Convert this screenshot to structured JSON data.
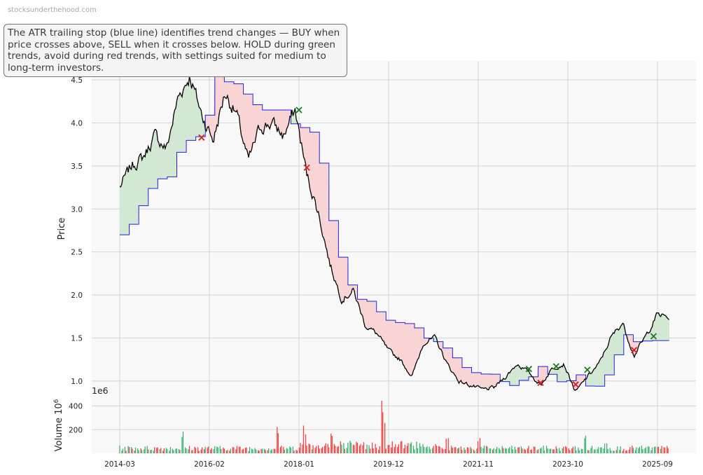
{
  "watermark": "stocksunderthehood.com",
  "annotation": "The ATR trailing stop (blue line) identifies trend changes — BUY when price crosses above, SELL when it crosses below. HOLD during green trends, avoid during red trends, with settings suited for medium to long-term investors.",
  "colors": {
    "price": "#000000",
    "stop": "#1f1fe0",
    "fill_up": "#d3e8d3",
    "fill_down": "#f9d4d4",
    "buy": "#1a7a1a",
    "sell": "#d62020",
    "vol_up": "#3cb371",
    "vol_down": "#ef4444",
    "plot_bg": "#f8f8f8",
    "grid": "#d4d4d4"
  },
  "chart_data": [
    {
      "type": "line",
      "ylabel": "Price",
      "ylim": [
        0.82,
        4.72
      ],
      "yticks": [
        "1.0",
        "1.5",
        "2.0",
        "2.5",
        "3.0",
        "3.5",
        "4.0",
        "4.5"
      ],
      "xticks": [
        "2014-03",
        "2016-02",
        "2018-01",
        "2019-12",
        "2021-11",
        "2023-10",
        "2025-09"
      ],
      "grid": true,
      "series": [
        {
          "role": "price",
          "x": [
            "2014-03",
            "2014-06",
            "2014-09",
            "2014-12",
            "2015-03",
            "2015-06",
            "2015-09",
            "2015-12",
            "2016-03",
            "2016-06",
            "2016-09",
            "2016-12",
            "2017-03",
            "2017-06",
            "2017-09",
            "2017-12",
            "2018-03",
            "2018-06",
            "2018-09",
            "2018-12",
            "2019-03",
            "2019-06",
            "2019-09",
            "2019-12",
            "2020-03",
            "2020-06",
            "2020-09",
            "2020-12",
            "2021-03",
            "2021-06",
            "2021-09",
            "2021-12",
            "2022-03",
            "2022-06",
            "2022-09",
            "2022-12",
            "2023-03",
            "2023-06",
            "2023-09",
            "2023-12",
            "2024-03",
            "2024-06",
            "2024-09",
            "2024-12",
            "2025-03",
            "2025-06",
            "2025-09",
            "2025-12"
          ],
          "values": [
            3.25,
            3.5,
            3.6,
            3.85,
            3.7,
            4.3,
            4.55,
            4.1,
            3.8,
            4.35,
            4.1,
            3.55,
            3.95,
            4.0,
            3.85,
            4.15,
            3.4,
            2.95,
            2.35,
            1.95,
            2.05,
            1.65,
            1.55,
            1.35,
            1.25,
            1.05,
            1.45,
            1.5,
            1.2,
            1.0,
            0.95,
            0.9,
            0.92,
            1.05,
            1.2,
            1.1,
            0.95,
            1.15,
            1.2,
            0.87,
            1.05,
            1.2,
            1.5,
            1.68,
            1.3,
            1.52,
            1.78,
            1.73
          ]
        },
        {
          "role": "atr_stop",
          "x": [
            "2014-03",
            "2014-06",
            "2014-09",
            "2014-12",
            "2015-03",
            "2015-06",
            "2015-09",
            "2015-12",
            "2016-03",
            "2016-06",
            "2016-09",
            "2016-12",
            "2017-03",
            "2017-06",
            "2017-09",
            "2017-12",
            "2018-03",
            "2018-06",
            "2018-09",
            "2018-12",
            "2019-03",
            "2019-06",
            "2019-09",
            "2019-12",
            "2020-03",
            "2020-06",
            "2020-09",
            "2020-12",
            "2021-03",
            "2021-06",
            "2021-09",
            "2021-12",
            "2022-03",
            "2022-06",
            "2022-09",
            "2022-12",
            "2023-03",
            "2023-06",
            "2023-09",
            "2023-12",
            "2024-03",
            "2024-06",
            "2024-09",
            "2024-12",
            "2025-03",
            "2025-06",
            "2025-09",
            "2025-12"
          ],
          "values": [
            2.7,
            2.85,
            3.15,
            3.35,
            3.35,
            3.7,
            3.84,
            3.84,
            4.62,
            4.47,
            4.45,
            4.25,
            4.15,
            4.15,
            4.15,
            3.9,
            4.0,
            3.6,
            2.78,
            2.3,
            1.95,
            1.95,
            1.8,
            1.68,
            1.68,
            1.65,
            1.5,
            1.45,
            1.35,
            1.18,
            1.1,
            1.08,
            1.08,
            0.92,
            1.0,
            1.05,
            1.2,
            1.0,
            0.98,
            1.08,
            0.92,
            0.95,
            1.2,
            1.55,
            1.45,
            1.47,
            1.47,
            1.47
          ]
        }
      ],
      "buy_signals": {
        "x": [
          "2018-01",
          "2022-12",
          "2023-07",
          "2024-03",
          "2025-08"
        ],
        "y": [
          4.15,
          1.14,
          1.17,
          1.13,
          1.52
        ]
      },
      "sell_signals": {
        "x": [
          "2015-12",
          "2018-03",
          "2023-03",
          "2023-12",
          "2025-03"
        ],
        "y": [
          3.83,
          3.48,
          0.98,
          0.96,
          1.36
        ]
      }
    },
    {
      "type": "bar",
      "ylabel": "Volume  10^6",
      "offset_label": "1e6",
      "ylim": [
        0,
        480
      ],
      "yticks": [
        "200",
        "400"
      ],
      "xticks": [
        "2014-03",
        "2016-02",
        "2018-01",
        "2019-12",
        "2021-11",
        "2023-10",
        "2025-09"
      ],
      "grid": true
    }
  ]
}
